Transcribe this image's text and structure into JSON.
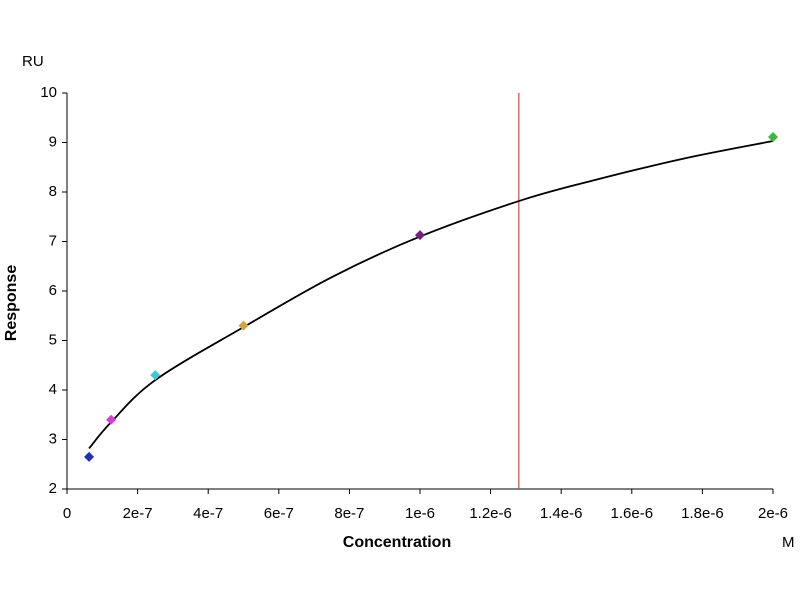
{
  "chart_data": {
    "type": "scatter",
    "xlabel": "Concentration",
    "ylabel": "Response",
    "x_unit": "M",
    "y_unit": "RU",
    "x": [
      6.25e-08,
      1.25e-07,
      2.5e-07,
      5e-07,
      1e-06,
      2e-06
    ],
    "values": [
      2.65,
      3.4,
      4.3,
      5.3,
      7.13,
      9.11
    ],
    "point_colors": [
      "#1f2fb8",
      "#d93ad9",
      "#3cc8d8",
      "#d4a43a",
      "#7a1f7a",
      "#3cb83c"
    ],
    "fit": {
      "x": [
        6.25e-08,
        1.25e-07,
        2.5e-07,
        5e-07,
        7.5e-07,
        1e-06,
        1.29e-06,
        1.5e-06,
        1.75e-06,
        2e-06
      ],
      "values": [
        2.82,
        3.35,
        4.2,
        5.27,
        6.28,
        7.1,
        7.84,
        8.25,
        8.68,
        9.03
      ],
      "color": "#000000"
    },
    "vline": {
      "x": 1.28e-06,
      "color": "#c0504d"
    },
    "xlim": [
      0,
      2e-06
    ],
    "ylim": [
      2,
      10
    ],
    "xticks": [
      0,
      {
        "value": 2e-07,
        "label": "2e-7"
      },
      {
        "value": 4e-07,
        "label": "4e-7"
      },
      {
        "value": 6e-07,
        "label": "6e-7"
      },
      {
        "value": 8e-07,
        "label": "8e-7"
      },
      {
        "value": 1e-06,
        "label": "1e-6"
      },
      {
        "value": 1.2e-06,
        "label": "1.2e-6"
      },
      {
        "value": 1.4e-06,
        "label": "1.4e-6"
      },
      {
        "value": 1.6e-06,
        "label": "1.6e-6"
      },
      {
        "value": 1.8e-06,
        "label": "1.8e-6"
      },
      {
        "value": 2e-06,
        "label": "2e-6"
      }
    ],
    "yticks": [
      2,
      3,
      4,
      5,
      6,
      7,
      8,
      9,
      10
    ]
  }
}
